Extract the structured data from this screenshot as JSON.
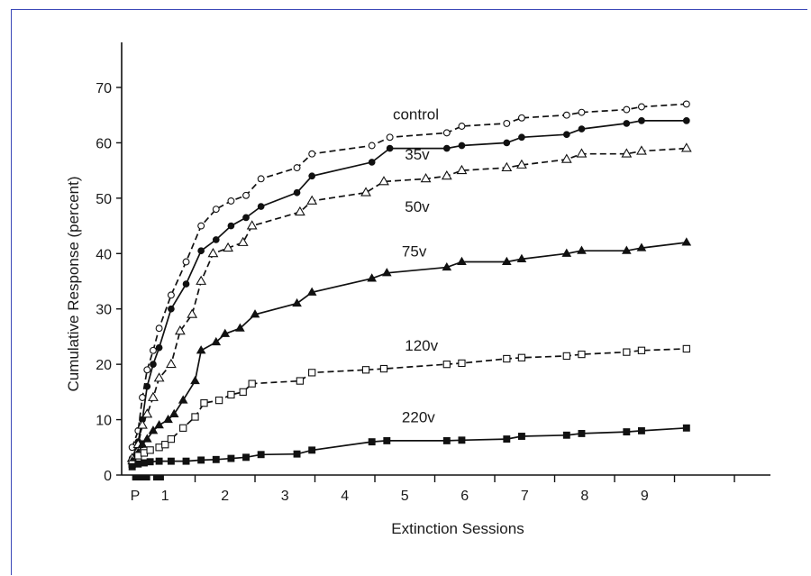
{
  "chart_data": {
    "type": "line",
    "title": "",
    "xlabel": "Extinction Sessions",
    "ylabel": "Cumulative Response (percent)",
    "ylim": [
      0,
      70
    ],
    "xlim": [
      0,
      10.15
    ],
    "y_ticks": [
      0,
      10,
      20,
      30,
      40,
      50,
      60,
      70
    ],
    "x_tick_labels": [
      {
        "label": "P",
        "x": 0
      },
      {
        "label": "1",
        "x": 0.5
      },
      {
        "label": "2",
        "x": 1.5
      },
      {
        "label": "3",
        "x": 2.5
      },
      {
        "label": "4",
        "x": 3.5
      },
      {
        "label": "5",
        "x": 4.5
      },
      {
        "label": "6",
        "x": 5.5
      },
      {
        "label": "7",
        "x": 6.5
      },
      {
        "label": "8",
        "x": 7.5
      },
      {
        "label": "9",
        "x": 8.5
      }
    ],
    "x_ticks": [
      1,
      2,
      3,
      4,
      5,
      6,
      7,
      8,
      9,
      10
    ],
    "legend": "inline labels",
    "grid": false,
    "series": [
      {
        "name": "control",
        "style": "dashed",
        "marker": "circle",
        "filled": false,
        "label_at": [
          4.3,
          64.2
        ],
        "points": [
          [
            -0.05,
            5
          ],
          [
            0.05,
            8
          ],
          [
            0.12,
            14
          ],
          [
            0.2,
            19
          ],
          [
            0.3,
            22.5
          ],
          [
            0.4,
            26.5
          ],
          [
            0.6,
            32.5
          ],
          [
            0.85,
            38.5
          ],
          [
            1.1,
            45
          ],
          [
            1.35,
            48
          ],
          [
            1.6,
            49.5
          ],
          [
            1.85,
            50.5
          ],
          [
            2.1,
            53.5
          ],
          [
            2.7,
            55.5
          ],
          [
            2.95,
            58
          ],
          [
            3.95,
            59.5
          ],
          [
            4.25,
            61
          ],
          [
            5.2,
            61.8
          ],
          [
            5.45,
            63
          ],
          [
            6.2,
            63.5
          ],
          [
            6.45,
            64.5
          ],
          [
            7.2,
            65
          ],
          [
            7.45,
            65.5
          ],
          [
            8.2,
            66
          ],
          [
            8.45,
            66.5
          ],
          [
            9.2,
            67
          ]
        ]
      },
      {
        "name": "35v",
        "style": "solid",
        "marker": "circle",
        "filled": true,
        "label_at": [
          4.5,
          57
        ],
        "points": [
          [
            -0.05,
            3
          ],
          [
            0.05,
            6
          ],
          [
            0.12,
            10
          ],
          [
            0.2,
            16
          ],
          [
            0.3,
            20
          ],
          [
            0.4,
            23
          ],
          [
            0.6,
            30
          ],
          [
            0.85,
            34.5
          ],
          [
            1.1,
            40.5
          ],
          [
            1.35,
            42.5
          ],
          [
            1.6,
            45
          ],
          [
            1.85,
            46.5
          ],
          [
            2.1,
            48.5
          ],
          [
            2.7,
            51
          ],
          [
            2.95,
            54
          ],
          [
            3.95,
            56.5
          ],
          [
            4.25,
            59
          ],
          [
            5.2,
            59
          ],
          [
            5.45,
            59.5
          ],
          [
            6.2,
            60
          ],
          [
            6.45,
            61
          ],
          [
            7.2,
            61.5
          ],
          [
            7.45,
            62.5
          ],
          [
            8.2,
            63.5
          ],
          [
            8.45,
            64
          ],
          [
            9.2,
            64
          ]
        ]
      },
      {
        "name": "50v",
        "style": "dashed",
        "marker": "triangle",
        "filled": false,
        "label_at": [
          4.5,
          47.5
        ],
        "points": [
          [
            -0.05,
            3
          ],
          [
            0.05,
            5.5
          ],
          [
            0.12,
            9
          ],
          [
            0.2,
            11
          ],
          [
            0.3,
            14
          ],
          [
            0.4,
            17.5
          ],
          [
            0.6,
            20
          ],
          [
            0.75,
            26
          ],
          [
            0.95,
            29
          ],
          [
            1.1,
            35
          ],
          [
            1.3,
            40
          ],
          [
            1.55,
            41
          ],
          [
            1.8,
            42
          ],
          [
            1.95,
            45
          ],
          [
            2.75,
            47.5
          ],
          [
            2.95,
            49.5
          ],
          [
            3.85,
            51
          ],
          [
            4.15,
            53
          ],
          [
            4.85,
            53.5
          ],
          [
            5.2,
            54
          ],
          [
            5.45,
            55
          ],
          [
            6.2,
            55.5
          ],
          [
            6.45,
            56
          ],
          [
            7.2,
            57
          ],
          [
            7.45,
            58
          ],
          [
            8.2,
            58
          ],
          [
            8.45,
            58.5
          ],
          [
            9.2,
            59
          ]
        ]
      },
      {
        "name": "75v",
        "style": "solid",
        "marker": "triangle",
        "filled": true,
        "label_at": [
          4.45,
          39.5
        ],
        "points": [
          [
            -0.05,
            2.5
          ],
          [
            0.05,
            4
          ],
          [
            0.12,
            5.5
          ],
          [
            0.2,
            6.5
          ],
          [
            0.3,
            8
          ],
          [
            0.4,
            9
          ],
          [
            0.55,
            10
          ],
          [
            0.65,
            11
          ],
          [
            0.8,
            13.5
          ],
          [
            1,
            17
          ],
          [
            1.1,
            22.5
          ],
          [
            1.35,
            24
          ],
          [
            1.5,
            25.5
          ],
          [
            1.75,
            26.5
          ],
          [
            2,
            29
          ],
          [
            2.7,
            31
          ],
          [
            2.95,
            33
          ],
          [
            3.95,
            35.5
          ],
          [
            4.2,
            36.5
          ],
          [
            5.2,
            37.5
          ],
          [
            5.45,
            38.5
          ],
          [
            6.2,
            38.5
          ],
          [
            6.45,
            39
          ],
          [
            7.2,
            40
          ],
          [
            7.45,
            40.5
          ],
          [
            8.2,
            40.5
          ],
          [
            8.45,
            41
          ],
          [
            9.2,
            42
          ]
        ]
      },
      {
        "name": "120v",
        "style": "dashed",
        "marker": "square",
        "filled": false,
        "label_at": [
          4.5,
          22.5
        ],
        "points": [
          [
            -0.05,
            2
          ],
          [
            0.05,
            3.5
          ],
          [
            0.15,
            4
          ],
          [
            0.25,
            4.5
          ],
          [
            0.4,
            5
          ],
          [
            0.5,
            5.5
          ],
          [
            0.6,
            6.5
          ],
          [
            0.8,
            8.5
          ],
          [
            1,
            10.5
          ],
          [
            1.15,
            13
          ],
          [
            1.4,
            13.5
          ],
          [
            1.6,
            14.5
          ],
          [
            1.8,
            15
          ],
          [
            1.95,
            16.5
          ],
          [
            2.75,
            17
          ],
          [
            2.95,
            18.5
          ],
          [
            3.85,
            19
          ],
          [
            4.15,
            19.2
          ],
          [
            5.2,
            20
          ],
          [
            5.45,
            20.2
          ],
          [
            6.2,
            21
          ],
          [
            6.45,
            21.2
          ],
          [
            7.2,
            21.5
          ],
          [
            7.45,
            21.8
          ],
          [
            8.2,
            22.2
          ],
          [
            8.45,
            22.5
          ],
          [
            9.2,
            22.8
          ]
        ]
      },
      {
        "name": "220v",
        "style": "solid",
        "marker": "square",
        "filled": true,
        "label_at": [
          4.45,
          9.5
        ],
        "points": [
          [
            -0.05,
            1.5
          ],
          [
            0.05,
            2
          ],
          [
            0.15,
            2.2
          ],
          [
            0.25,
            2.4
          ],
          [
            0.4,
            2.5
          ],
          [
            0.6,
            2.5
          ],
          [
            0.85,
            2.5
          ],
          [
            1.1,
            2.7
          ],
          [
            1.35,
            2.8
          ],
          [
            1.6,
            3
          ],
          [
            1.85,
            3.2
          ],
          [
            2.1,
            3.7
          ],
          [
            2.7,
            3.8
          ],
          [
            2.95,
            4.5
          ],
          [
            3.95,
            6
          ],
          [
            4.2,
            6.2
          ],
          [
            5.2,
            6.2
          ],
          [
            5.45,
            6.3
          ],
          [
            6.2,
            6.5
          ],
          [
            6.45,
            7
          ],
          [
            7.2,
            7.2
          ],
          [
            7.45,
            7.5
          ],
          [
            8.2,
            7.8
          ],
          [
            8.45,
            8
          ],
          [
            9.2,
            8.5
          ]
        ]
      }
    ]
  }
}
